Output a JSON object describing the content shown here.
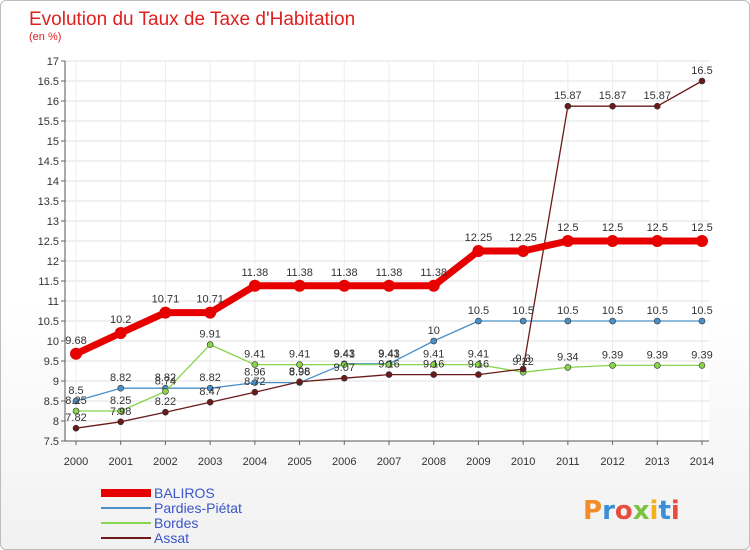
{
  "chart_data": {
    "type": "line",
    "title": "Evolution du Taux de Taxe d'Habitation",
    "subtitle": "(en %)",
    "xlabel": "",
    "ylabel": "",
    "x": [
      2000,
      2001,
      2002,
      2003,
      2004,
      2005,
      2006,
      2007,
      2008,
      2009,
      2010,
      2011,
      2012,
      2013,
      2014
    ],
    "ylim": [
      7.5,
      17
    ],
    "yticks": [
      7.5,
      8,
      8.5,
      9,
      9.5,
      10,
      10.5,
      11,
      11.5,
      12,
      12.5,
      13,
      13.5,
      14,
      14.5,
      15,
      15.5,
      16,
      16.5,
      17
    ],
    "legend_position": "bottom-left",
    "series": [
      {
        "name": "BALIROS",
        "color": "#e60000",
        "values": [
          9.68,
          10.2,
          10.71,
          10.71,
          11.38,
          11.38,
          11.38,
          11.38,
          11.38,
          12.25,
          12.25,
          12.5,
          12.5,
          12.5,
          12.5
        ]
      },
      {
        "name": "Pardies-Piétat",
        "color": "#4a90c8",
        "values": [
          8.5,
          8.82,
          8.82,
          8.82,
          8.96,
          8.96,
          9.43,
          9.43,
          10,
          10.5,
          10.5,
          10.5,
          10.5,
          10.5,
          10.5
        ]
      },
      {
        "name": "Bordes",
        "color": "#88d44a",
        "values": [
          8.25,
          8.25,
          8.74,
          9.91,
          9.41,
          9.41,
          9.41,
          9.41,
          9.41,
          9.41,
          9.22,
          9.34,
          9.39,
          9.39,
          9.39
        ]
      },
      {
        "name": "Assat",
        "color": "#6b1a1a",
        "values": [
          7.82,
          7.98,
          8.22,
          8.47,
          8.72,
          8.98,
          9.07,
          9.16,
          9.16,
          9.16,
          9.3,
          15.87,
          15.87,
          15.87,
          16.5
        ]
      }
    ]
  },
  "logo": {
    "text": "Proxiti"
  }
}
